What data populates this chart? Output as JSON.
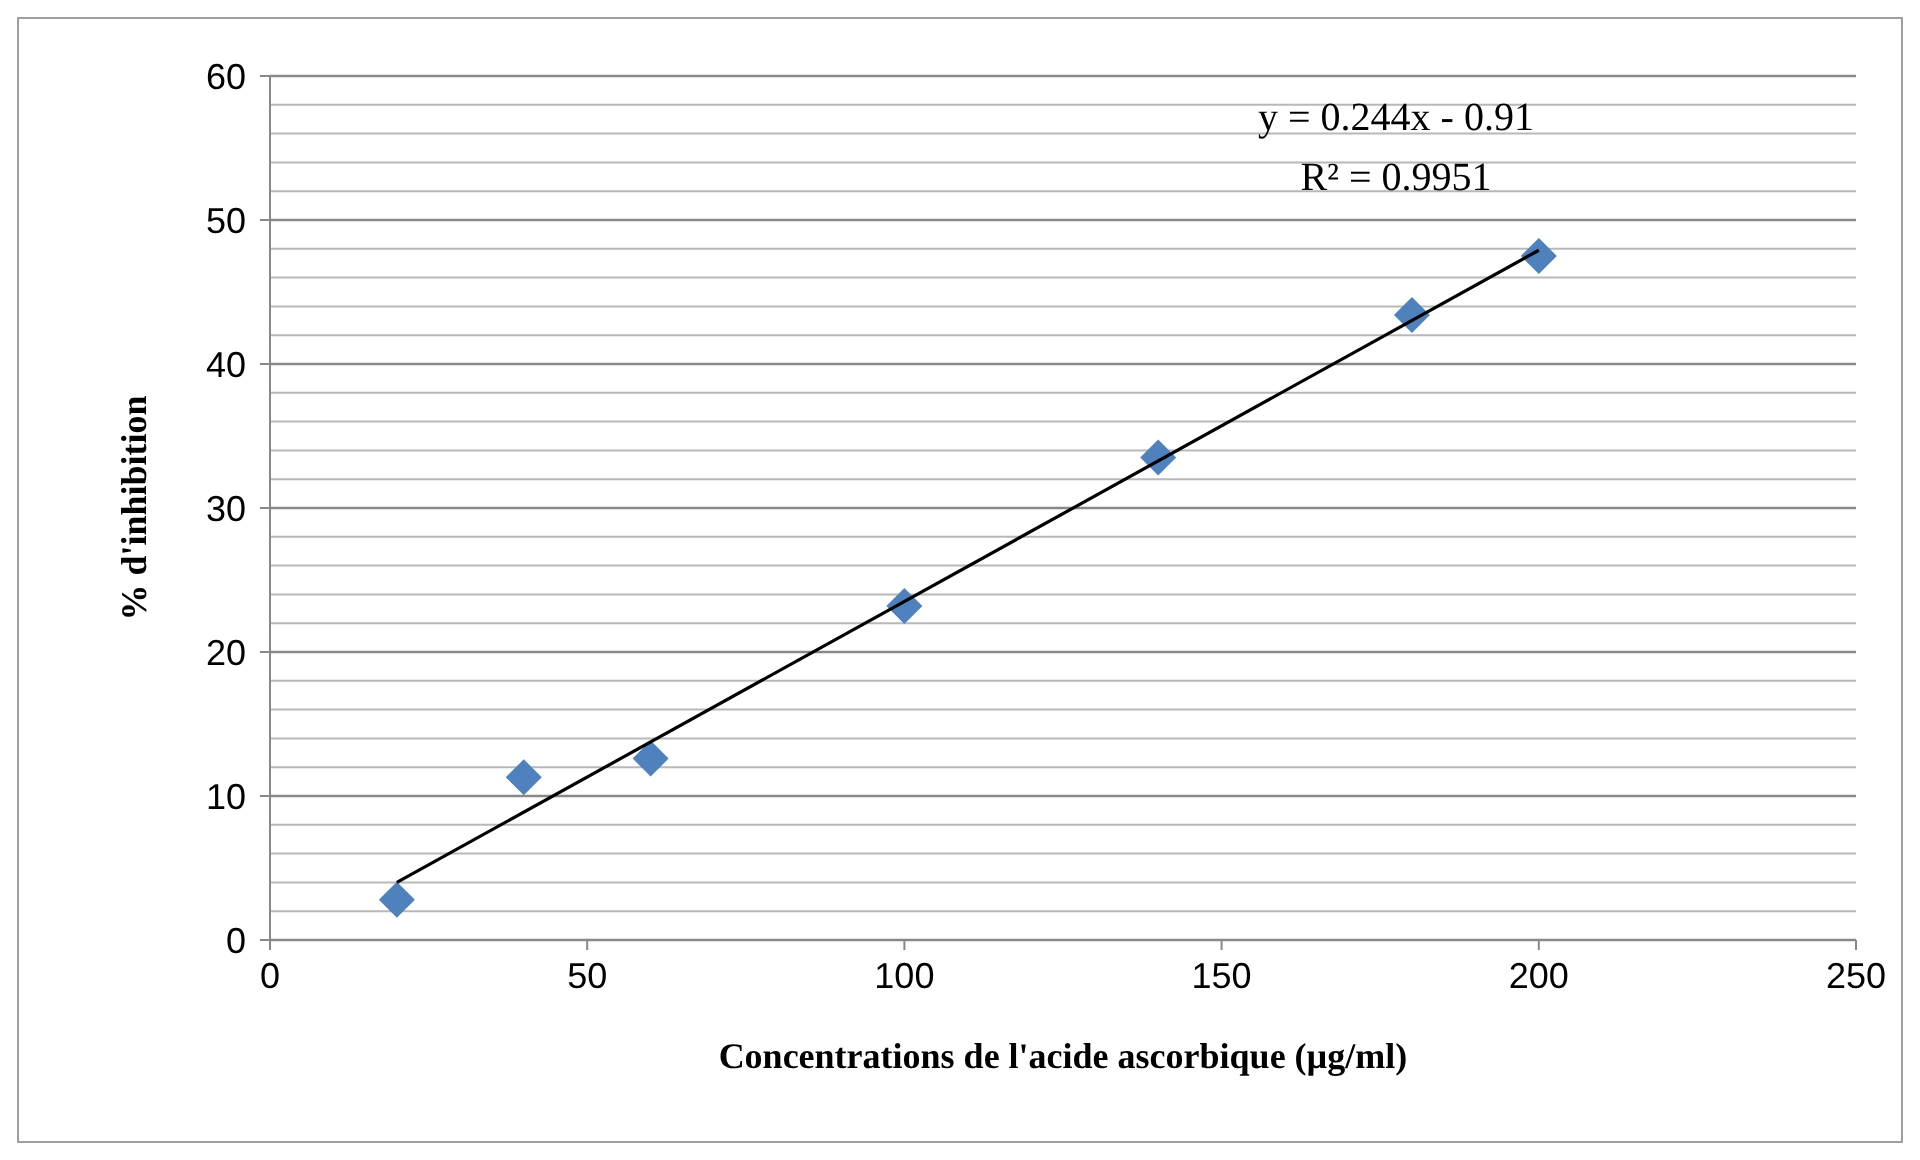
{
  "chart_data": {
    "type": "scatter",
    "xlabel": "Concentrations de l'acide ascorbique (µg/ml)",
    "ylabel": "% d'inhibition",
    "x": [
      20,
      40,
      60,
      100,
      140,
      180,
      200
    ],
    "series": [
      {
        "color": "#4f81bd",
        "marker": "diamond",
        "values": [
          2.8,
          11.3,
          12.6,
          23.2,
          33.5,
          43.4,
          47.5
        ]
      },
      {
        "type": "line",
        "color": "#000000",
        "x": [
          20,
          200
        ],
        "values": [
          4.0,
          47.9
        ],
        "marker": "none",
        "line_style": "solid"
      }
    ],
    "xlim": [
      0,
      250
    ],
    "xticks": [
      0,
      50,
      100,
      150,
      200,
      250
    ],
    "ylim": [
      0,
      60
    ],
    "yticks": [
      0,
      {
        "value": 2,
        "label": null
      },
      {
        "value": 4,
        "label": null
      },
      {
        "value": 6,
        "label": null
      },
      {
        "value": 8,
        "label": null
      },
      10,
      {
        "value": 12,
        "label": null
      },
      {
        "value": 14,
        "label": null
      },
      {
        "value": 16,
        "label": null
      },
      {
        "value": 18,
        "label": null
      },
      20,
      {
        "value": 22,
        "label": null
      },
      {
        "value": 24,
        "label": null
      },
      {
        "value": 26,
        "label": null
      },
      {
        "value": 28,
        "label": null
      },
      30,
      {
        "value": 32,
        "label": null
      },
      {
        "value": 34,
        "label": null
      },
      {
        "value": 36,
        "label": null
      },
      {
        "value": 38,
        "label": null
      },
      40,
      {
        "value": 42,
        "label": null
      },
      {
        "value": 44,
        "label": null
      },
      {
        "value": 46,
        "label": null
      },
      {
        "value": 48,
        "label": null
      },
      50,
      {
        "value": 52,
        "label": null
      },
      {
        "value": 54,
        "label": null
      },
      {
        "value": 56,
        "label": null
      },
      {
        "value": 58,
        "label": null
      },
      60
    ],
    "grid": "y",
    "annotations": [
      "y = 0.244x - 0.91",
      "R² = 0.9951"
    ]
  }
}
